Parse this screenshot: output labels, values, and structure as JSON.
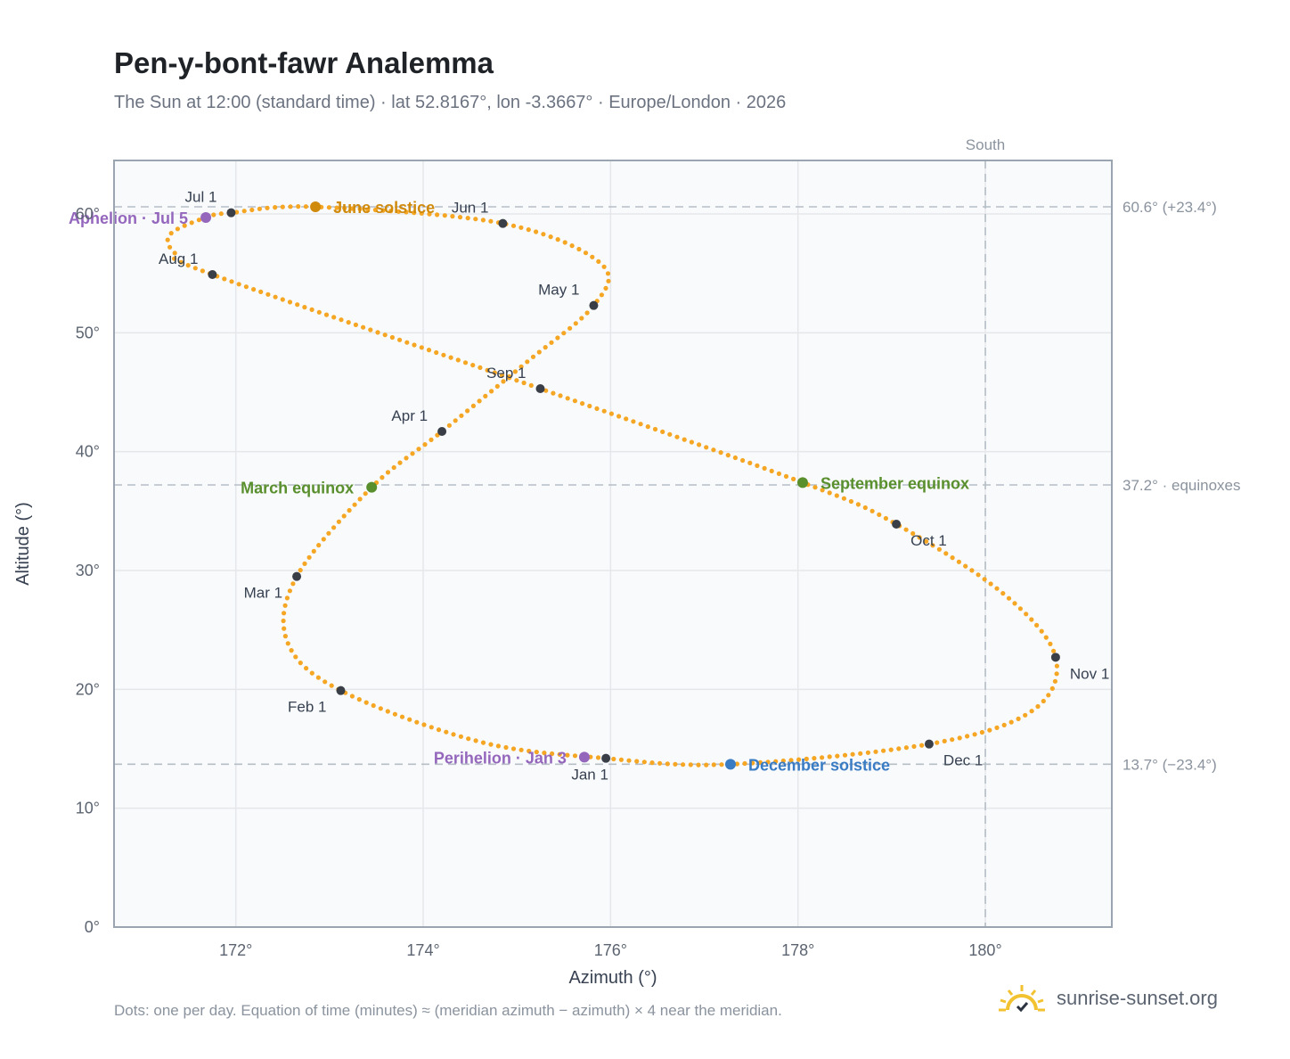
{
  "header": {
    "title": "Pen-y-bont-fawr Analemma",
    "subtitle": "The Sun at 12:00 (standard time) · lat 52.8167°, lon -3.3667° · Europe/London · 2026"
  },
  "footer": {
    "note": "Dots: one per day. Equation of time (minutes) ≈ (meridian azimuth − azimuth) × 4 near the meridian.",
    "brand": "sunrise-sunset.org",
    "brand_icon": "sun-logo-icon"
  },
  "colors": {
    "path": "#f5a623",
    "month_dot": "#3a3f47",
    "equinox": "#5a8f2e",
    "june_solstice": "#d08a0c",
    "december_solstice": "#3a7cc4",
    "apsis": "#9467bd",
    "plot_bg": "#f8fafc",
    "grid": "#e5e7eb",
    "reference_line": "#b6bec6"
  },
  "chart_data": {
    "type": "scatter",
    "title": "Pen-y-bont-fawr Analemma",
    "xlabel": "Azimuth (°)",
    "ylabel": "Altitude (°)",
    "xlim": [
      170.7,
      181.35
    ],
    "ylim": [
      0,
      64.5
    ],
    "x_ticks": [
      172,
      174,
      176,
      178,
      180
    ],
    "x_tick_labels": [
      "172°",
      "174°",
      "176°",
      "178°",
      "180°"
    ],
    "y_ticks": [
      0,
      10,
      20,
      30,
      40,
      50,
      60
    ],
    "y_tick_labels": [
      "0°",
      "10°",
      "20°",
      "30°",
      "40°",
      "50°",
      "60°"
    ],
    "grid": true,
    "path_anchor_points": [
      {
        "date": "Jan 1",
        "azimuth": 175.95,
        "altitude": 14.2
      },
      {
        "date": "Jan 15",
        "azimuth": 174.6,
        "altitude": 15.6
      },
      {
        "date": "Feb 1",
        "azimuth": 173.12,
        "altitude": 19.9
      },
      {
        "date": "Feb 14",
        "azimuth": 172.55,
        "altitude": 24.0
      },
      {
        "date": "Mar 1",
        "azimuth": 172.65,
        "altitude": 29.5
      },
      {
        "date": "Mar 20",
        "azimuth": 173.45,
        "altitude": 37.0
      },
      {
        "date": "Apr 1",
        "azimuth": 174.2,
        "altitude": 41.7
      },
      {
        "date": "Apr 16",
        "azimuth": 175.1,
        "altitude": 47.5
      },
      {
        "date": "May 1",
        "azimuth": 175.82,
        "altitude": 52.3
      },
      {
        "date": "May 14",
        "azimuth": 175.9,
        "altitude": 55.8
      },
      {
        "date": "Jun 1",
        "azimuth": 174.85,
        "altitude": 59.2
      },
      {
        "date": "Jun 21",
        "azimuth": 172.85,
        "altitude": 60.6
      },
      {
        "date": "Jul 1",
        "azimuth": 171.95,
        "altitude": 60.1
      },
      {
        "date": "Jul 5",
        "azimuth": 171.68,
        "altitude": 59.7
      },
      {
        "date": "Jul 15",
        "azimuth": 171.3,
        "altitude": 58.3
      },
      {
        "date": "Jul 26",
        "azimuth": 171.35,
        "altitude": 56.7
      },
      {
        "date": "Aug 1",
        "azimuth": 171.75,
        "altitude": 54.9
      },
      {
        "date": "Sep 1",
        "azimuth": 175.25,
        "altitude": 45.3
      },
      {
        "date": "Sep 23",
        "azimuth": 178.05,
        "altitude": 37.4
      },
      {
        "date": "Oct 1",
        "azimuth": 179.05,
        "altitude": 33.9
      },
      {
        "date": "Oct 15",
        "azimuth": 180.2,
        "altitude": 28.0
      },
      {
        "date": "Nov 1",
        "azimuth": 180.75,
        "altitude": 22.7
      },
      {
        "date": "Nov 15",
        "azimuth": 180.5,
        "altitude": 18.2
      },
      {
        "date": "Dec 1",
        "azimuth": 179.4,
        "altitude": 15.4
      },
      {
        "date": "Dec 21",
        "azimuth": 177.28,
        "altitude": 13.7
      },
      {
        "date": "Jan 1",
        "azimuth": 175.95,
        "altitude": 14.2
      }
    ],
    "month_markers": [
      {
        "label": "Jan 1",
        "azimuth": 175.95,
        "altitude": 14.2,
        "pos": "below"
      },
      {
        "label": "Feb 1",
        "azimuth": 173.12,
        "altitude": 19.9,
        "pos": "below-left"
      },
      {
        "label": "Mar 1",
        "azimuth": 172.65,
        "altitude": 29.5,
        "pos": "below-left"
      },
      {
        "label": "Apr 1",
        "azimuth": 174.2,
        "altitude": 41.7,
        "pos": "above-left"
      },
      {
        "label": "May 1",
        "azimuth": 175.82,
        "altitude": 52.3,
        "pos": "above-left"
      },
      {
        "label": "Jun 1",
        "azimuth": 174.85,
        "altitude": 59.2,
        "pos": "above-left"
      },
      {
        "label": "Jul 1",
        "azimuth": 171.95,
        "altitude": 60.1,
        "pos": "above-left"
      },
      {
        "label": "Aug 1",
        "azimuth": 171.75,
        "altitude": 54.9,
        "pos": "above-left"
      },
      {
        "label": "Sep 1",
        "azimuth": 175.25,
        "altitude": 45.3,
        "pos": "above-left"
      },
      {
        "label": "Oct 1",
        "azimuth": 179.05,
        "altitude": 33.9,
        "pos": "below-right"
      },
      {
        "label": "Nov 1",
        "azimuth": 180.75,
        "altitude": 22.7,
        "pos": "below-right"
      },
      {
        "label": "Dec 1",
        "azimuth": 179.4,
        "altitude": 15.4,
        "pos": "below-right"
      }
    ],
    "events": [
      {
        "label": "June solstice",
        "azimuth": 172.85,
        "altitude": 60.6,
        "color": "#d08a0c",
        "side": "right"
      },
      {
        "label": "December solstice",
        "azimuth": 177.28,
        "altitude": 13.7,
        "color": "#3a7cc4",
        "side": "right"
      },
      {
        "label": "March equinox",
        "azimuth": 173.45,
        "altitude": 37.0,
        "color": "#5a8f2e",
        "side": "left"
      },
      {
        "label": "September equinox",
        "azimuth": 178.05,
        "altitude": 37.4,
        "color": "#5a8f2e",
        "side": "right"
      },
      {
        "label": "Aphelion · Jul 5",
        "azimuth": 171.68,
        "altitude": 59.7,
        "color": "#9467bd",
        "side": "left"
      },
      {
        "label": "Perihelion · Jan 3",
        "azimuth": 175.72,
        "altitude": 14.3,
        "color": "#9467bd",
        "side": "left"
      }
    ],
    "reference_lines": [
      {
        "label": "60.6° (+23.4°)",
        "altitude": 60.6
      },
      {
        "label": "37.2° · equinoxes",
        "altitude": 37.2
      },
      {
        "label": "13.7° (−23.4°)",
        "altitude": 13.7
      }
    ],
    "meridian": {
      "label": "South",
      "azimuth": 180
    }
  }
}
